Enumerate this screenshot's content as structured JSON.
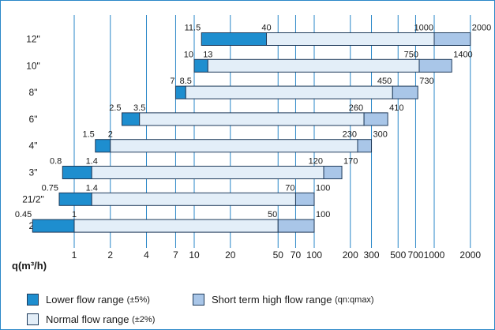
{
  "chart_data": {
    "type": "bar",
    "subtype": "horizontal-floating-range-log-x",
    "x_scale": "log",
    "xlabel": "q(m³/h)",
    "xticks": [
      {
        "value": 1,
        "label": "1"
      },
      {
        "value": 2,
        "label": "2"
      },
      {
        "value": 4,
        "label": "4"
      },
      {
        "value": 7,
        "label": "7"
      },
      {
        "value": 10,
        "label": "10"
      },
      {
        "value": 20,
        "label": "20"
      },
      {
        "value": 50,
        "label": "50"
      },
      {
        "value": 70,
        "label": "70"
      },
      {
        "value": 100,
        "label": "100"
      },
      {
        "value": 200,
        "label": "200"
      },
      {
        "value": 300,
        "label": "300"
      },
      {
        "value": 500,
        "label": "500"
      },
      {
        "value": 700,
        "label": "700"
      },
      {
        "value": 1000,
        "label": "1000"
      },
      {
        "value": 2000,
        "label": "2000"
      }
    ],
    "xlim": [
      0.4,
      2400
    ],
    "grid": "vertical lines at ticks",
    "colors": {
      "lower": "#1e8ecf",
      "normal": "#e3eef8",
      "high": "#a9c6e8",
      "grid": "#2a87c8",
      "border": "#2a87c8",
      "bar_outline": "#1e3a5a"
    },
    "rows": [
      {
        "label": "12\"",
        "qmin": 11.5,
        "qt": 40,
        "qn": 1000,
        "qmax": 2000,
        "labels": [
          "11.5",
          "40",
          "1000",
          "2000"
        ]
      },
      {
        "label": "10\"",
        "qmin": 10,
        "qt": 13,
        "qn": 750,
        "qmax": 1400,
        "labels": [
          "10",
          "13",
          "750",
          "1400"
        ]
      },
      {
        "label": "8\"",
        "qmin": 7,
        "qt": 8.5,
        "qn": 450,
        "qmax": 730,
        "labels": [
          "7",
          "8.5",
          "450",
          "730"
        ]
      },
      {
        "label": "6\"",
        "qmin": 2.5,
        "qt": 3.5,
        "qn": 260,
        "qmax": 410,
        "labels": [
          "2.5",
          "3.5",
          "260",
          "410"
        ]
      },
      {
        "label": "4\"",
        "qmin": 1.5,
        "qt": 2,
        "qn": 230,
        "qmax": 300,
        "labels": [
          "1.5",
          "2",
          "230",
          "300"
        ]
      },
      {
        "label": "3\"",
        "qmin": 0.8,
        "qt": 1.4,
        "qn": 120,
        "qmax": 170,
        "labels": [
          "0.8",
          "1.4",
          "120",
          "170"
        ]
      },
      {
        "label": "21/2\"",
        "qmin": 0.75,
        "qt": 1.4,
        "qn": 70,
        "qmax": 100,
        "labels": [
          "0.75",
          "1.4",
          "70",
          "100"
        ]
      },
      {
        "label": "2\"",
        "qmin": 0.45,
        "qt": 1,
        "qn": 50,
        "qmax": 100,
        "labels": [
          "0.45",
          "1",
          "50",
          "100"
        ]
      }
    ],
    "legend": [
      {
        "key": "lower",
        "text": "Lower flow range ",
        "sub": "(±5%)"
      },
      {
        "key": "high",
        "text": "Short term high flow range ",
        "sub": "(qn:qmax)"
      },
      {
        "key": "normal",
        "text": "Normal flow range ",
        "sub": "(±2%)"
      }
    ]
  }
}
